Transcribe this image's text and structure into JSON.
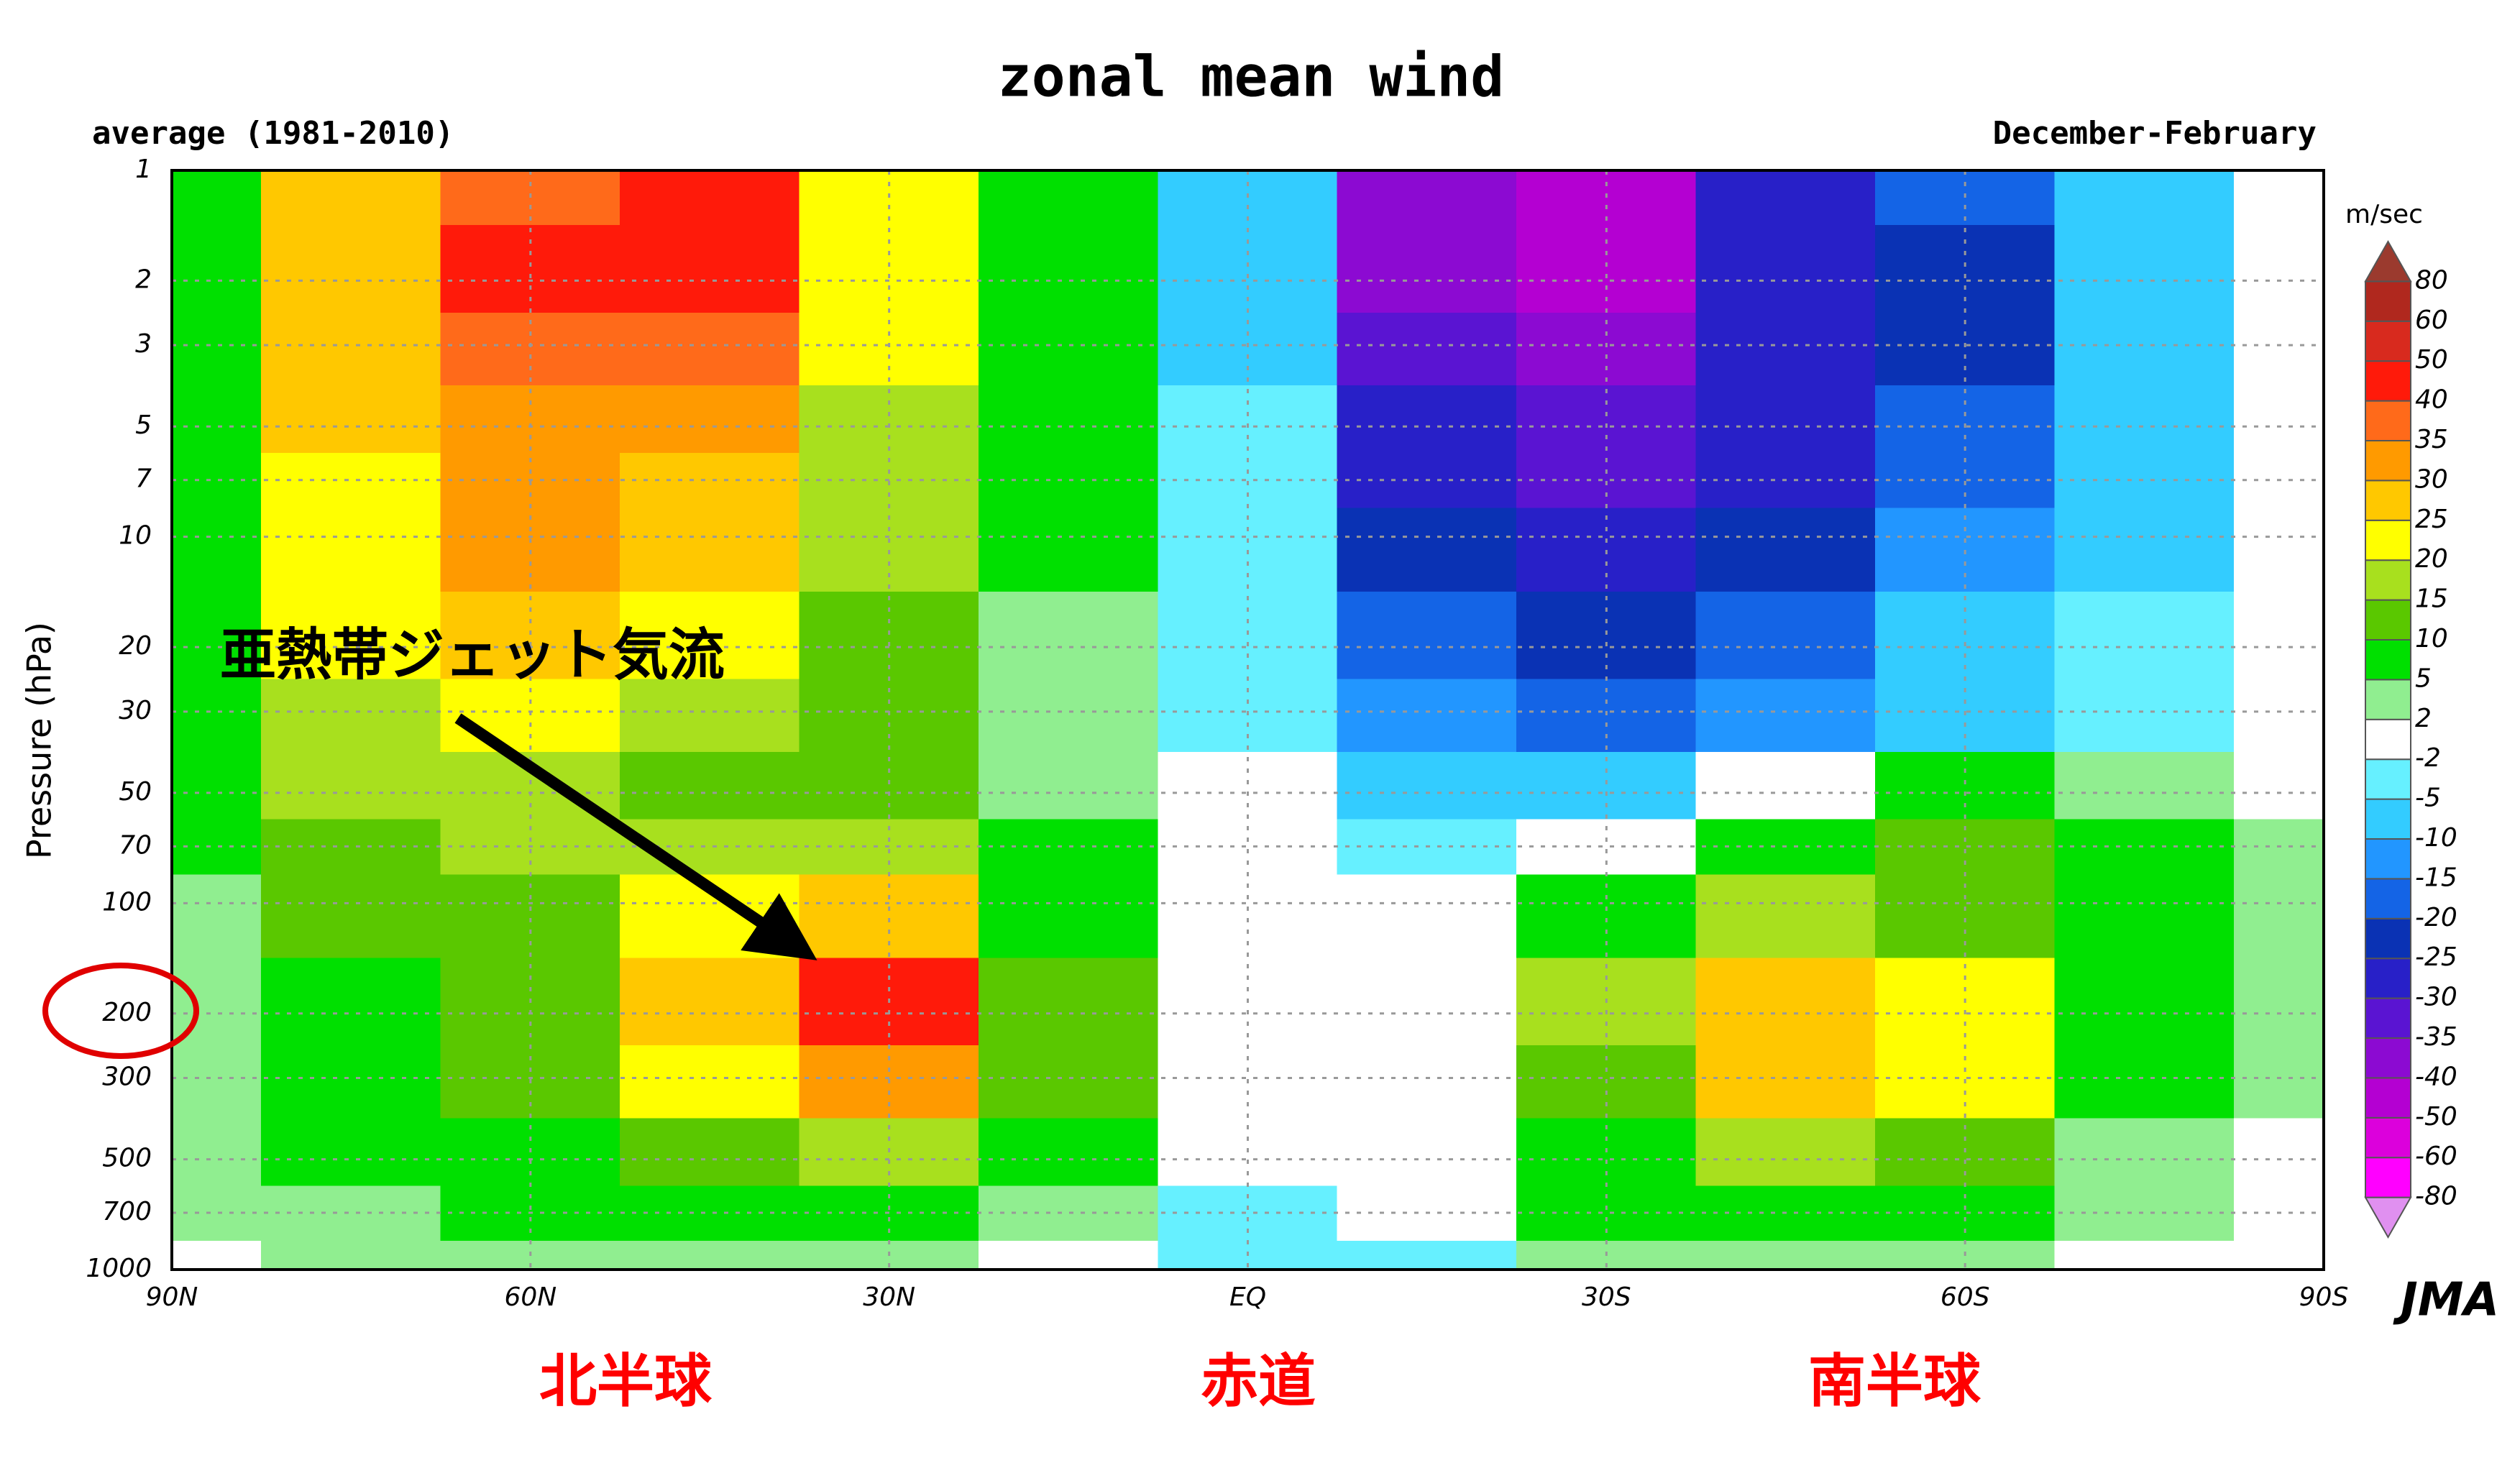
{
  "chart_data": {
    "type": "contour",
    "title": "zonal mean wind",
    "subtitle_left": "average (1981-2010)",
    "subtitle_right": "December-February",
    "y_label": "Pressure (hPa)",
    "colorbar_label": "m/sec",
    "credit": "JMA",
    "annotation": "亜熱帯ジェット気流",
    "region_labels": [
      "北半球",
      "赤道",
      "南半球"
    ],
    "log_y": true,
    "grid": true,
    "xlim": [
      90,
      -90
    ],
    "ylim": [
      1000,
      1
    ],
    "xticks": [
      {
        "value": 90,
        "label": "90N"
      },
      {
        "value": 60,
        "label": "60N"
      },
      {
        "value": 30,
        "label": "30N"
      },
      {
        "value": 0,
        "label": "EQ"
      },
      {
        "value": -30,
        "label": "30S"
      },
      {
        "value": -60,
        "label": "60S"
      },
      {
        "value": -90,
        "label": "90S"
      }
    ],
    "yticks": [
      1,
      2,
      3,
      5,
      7,
      10,
      20,
      30,
      50,
      70,
      100,
      200,
      300,
      500,
      700,
      1000
    ],
    "x": [
      90,
      75,
      60,
      45,
      30,
      15,
      0,
      -15,
      -30,
      -45,
      -60,
      -75,
      -90
    ],
    "y": [
      1,
      2,
      3,
      5,
      7,
      10,
      20,
      30,
      50,
      70,
      100,
      200,
      300,
      500,
      700,
      1000
    ],
    "z": [
      [
        5,
        25,
        35,
        45,
        20,
        5,
        -10,
        -40,
        -50,
        -30,
        -20,
        -10,
        -2
      ],
      [
        8,
        25,
        40,
        40,
        22,
        5,
        -10,
        -40,
        -45,
        -30,
        -22,
        -10,
        -2
      ],
      [
        8,
        25,
        35,
        35,
        20,
        5,
        -8,
        -35,
        -40,
        -30,
        -22,
        -10,
        -2
      ],
      [
        8,
        25,
        30,
        30,
        18,
        5,
        -5,
        -30,
        -35,
        -30,
        -20,
        -10,
        -2
      ],
      [
        8,
        22,
        30,
        28,
        15,
        5,
        -5,
        -28,
        -35,
        -28,
        -18,
        -8,
        -2
      ],
      [
        8,
        20,
        30,
        25,
        15,
        5,
        -5,
        -25,
        -30,
        -25,
        -15,
        -8,
        -2
      ],
      [
        6,
        20,
        25,
        20,
        12,
        3,
        -5,
        -20,
        -25,
        -18,
        -10,
        -5,
        -2
      ],
      [
        6,
        18,
        22,
        15,
        12,
        2,
        -5,
        -15,
        -20,
        -12,
        -8,
        -3,
        0
      ],
      [
        5,
        15,
        18,
        12,
        12,
        3,
        -2,
        -10,
        -10,
        0,
        5,
        3,
        0
      ],
      [
        5,
        12,
        15,
        15,
        15,
        5,
        0,
        -5,
        0,
        8,
        10,
        5,
        2
      ],
      [
        3,
        10,
        12,
        20,
        25,
        8,
        0,
        0,
        8,
        15,
        12,
        5,
        2
      ],
      [
        3,
        8,
        10,
        25,
        42,
        12,
        0,
        0,
        15,
        28,
        20,
        8,
        2
      ],
      [
        3,
        7,
        10,
        20,
        32,
        10,
        0,
        0,
        12,
        25,
        20,
        6,
        2
      ],
      [
        2,
        5,
        8,
        12,
        15,
        5,
        -2,
        0,
        8,
        15,
        12,
        4,
        0
      ],
      [
        2,
        3,
        5,
        8,
        8,
        2,
        -3,
        0,
        5,
        8,
        8,
        2,
        0
      ],
      [
        0,
        2,
        3,
        3,
        2,
        -2,
        -5,
        -3,
        2,
        3,
        3,
        0,
        0
      ]
    ],
    "levels": [
      -80,
      -60,
      -50,
      -40,
      -35,
      -30,
      -25,
      -20,
      -15,
      -10,
      -5,
      -2,
      2,
      5,
      10,
      15,
      20,
      25,
      30,
      35,
      40,
      50,
      60,
      80
    ],
    "colors": [
      "#e090f0",
      "#ff00ff",
      "#dc00dc",
      "#b400d2",
      "#8c0ad2",
      "#5a14d2",
      "#2820c8",
      "#0a32b4",
      "#1464e6",
      "#2296ff",
      "#33ccff",
      "#66f0ff",
      "#ffffff",
      "#90ee90",
      "#00e000",
      "#5ac800",
      "#a8e01e",
      "#ffff00",
      "#ffc800",
      "#ff9a00",
      "#ff6a1a",
      "#ff1a0a",
      "#d82a1e",
      "#b0281e",
      "#9b3a2e"
    ]
  }
}
